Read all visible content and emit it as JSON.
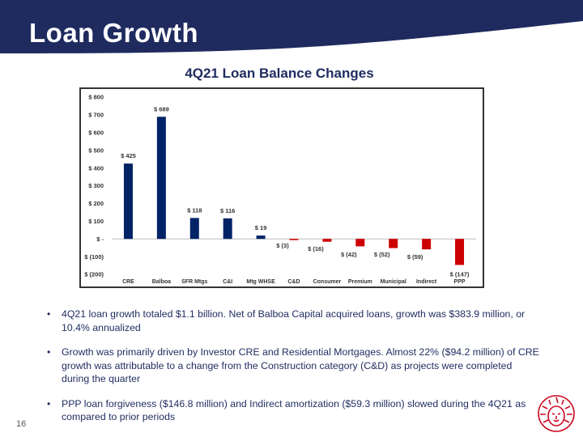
{
  "header": {
    "title": "Loan Growth"
  },
  "chart_data": {
    "type": "bar",
    "title": "4Q21 Loan Balance Changes",
    "categories": [
      "CRE",
      "Balboa Capital",
      "SFR Mtgs",
      "C&I",
      "Mtg WHSE",
      "C&D",
      "Consumer",
      "Premium Finance",
      "Municipal",
      "Indirect",
      "PPP"
    ],
    "values": [
      425,
      689,
      118,
      116,
      19,
      -3,
      -16,
      -42,
      -52,
      -59,
      -147
    ],
    "value_labels": [
      "$ 425",
      "$ 689",
      "$ 118",
      "$ 116",
      "$ 19",
      "$ (3)",
      "$ (16)",
      "$ (42)",
      "$ (52)",
      "$ (59)",
      "$ (147)"
    ],
    "ylim": [
      -200,
      800
    ],
    "yticks": [
      800,
      700,
      600,
      500,
      400,
      300,
      200,
      100,
      0,
      -100,
      -200
    ],
    "ytick_labels": [
      "$ 800",
      "$ 700",
      "$ 600",
      "$ 500",
      "$ 400",
      "$ 300",
      "$ 200",
      "$ 100",
      "$ -",
      "$ (100)",
      "$ (200)"
    ],
    "xlabel": "",
    "ylabel": "",
    "grid": false,
    "colors": {
      "positive": "#002366",
      "negative": "#cc0000"
    }
  },
  "bullets": [
    "4Q21 loan growth totaled $1.1 billion.  Net of Balboa Capital acquired loans, growth was $383.9 million, or 10.4% annualized",
    "Growth was primarily driven by Investor CRE and Residential Mortgages.  Almost 22% ($94.2 million) of CRE growth was attributable to a change from the Construction category (C&D) as projects were completed during the quarter",
    "PPP loan forgiveness ($146.8 million) and Indirect amortization ($59.3 million) slowed during the 4Q21 as compared to prior periods"
  ],
  "bullet_symbol": "•",
  "footer": {
    "page_number": "16"
  },
  "theme": {
    "navy": "#1f2b5f",
    "brand_red": "#cc0a22"
  },
  "logo": {
    "icon": "lion-head-icon"
  }
}
